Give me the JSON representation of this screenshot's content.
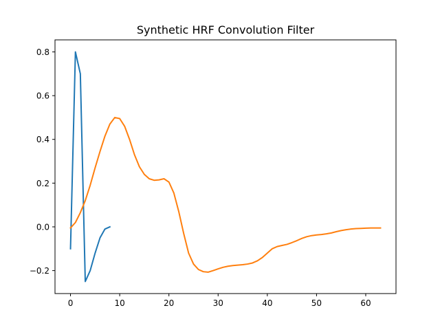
{
  "chart_data": {
    "type": "line",
    "title": "Synthetic HRF Convolution Filter",
    "xlabel": "",
    "ylabel": "",
    "xlim": [
      -3.15,
      66.15
    ],
    "ylim": [
      -0.305,
      0.855
    ],
    "xticks": [
      0,
      10,
      20,
      30,
      40,
      50,
      60
    ],
    "yticks": [
      -0.2,
      0.0,
      0.2,
      0.4,
      0.6,
      0.8
    ],
    "ytick_labels": [
      "−0.2",
      "0.0",
      "0.2",
      "0.4",
      "0.6",
      "0.8"
    ],
    "grid": false,
    "series": [
      {
        "color": "#1f77b4",
        "x": [
          0,
          1,
          2,
          3,
          4,
          5,
          6,
          7,
          8
        ],
        "y": [
          -0.1,
          0.8,
          0.7,
          -0.25,
          -0.2,
          -0.12,
          -0.05,
          -0.01,
          0.0
        ]
      },
      {
        "color": "#ff7f0e",
        "x": [
          0,
          1,
          2,
          3,
          4,
          5,
          6,
          7,
          8,
          9,
          10,
          11,
          12,
          13,
          14,
          15,
          16,
          17,
          18,
          19,
          20,
          21,
          22,
          23,
          24,
          25,
          26,
          27,
          28,
          29,
          30,
          31,
          32,
          33,
          34,
          35,
          36,
          37,
          38,
          39,
          40,
          41,
          42,
          43,
          44,
          45,
          46,
          47,
          48,
          49,
          50,
          51,
          52,
          53,
          54,
          55,
          56,
          57,
          58,
          59,
          60,
          61,
          62,
          63
        ],
        "y": [
          -0.005,
          0.02,
          0.065,
          0.12,
          0.19,
          0.27,
          0.345,
          0.415,
          0.47,
          0.5,
          0.495,
          0.46,
          0.4,
          0.33,
          0.275,
          0.24,
          0.22,
          0.213,
          0.215,
          0.22,
          0.205,
          0.155,
          0.07,
          -0.03,
          -0.12,
          -0.17,
          -0.195,
          -0.205,
          -0.207,
          -0.2,
          -0.192,
          -0.185,
          -0.18,
          -0.177,
          -0.175,
          -0.173,
          -0.17,
          -0.165,
          -0.155,
          -0.14,
          -0.12,
          -0.1,
          -0.09,
          -0.085,
          -0.08,
          -0.072,
          -0.063,
          -0.053,
          -0.045,
          -0.04,
          -0.037,
          -0.035,
          -0.032,
          -0.028,
          -0.022,
          -0.017,
          -0.013,
          -0.01,
          -0.008,
          -0.007,
          -0.006,
          -0.005,
          -0.005,
          -0.005
        ]
      }
    ]
  }
}
